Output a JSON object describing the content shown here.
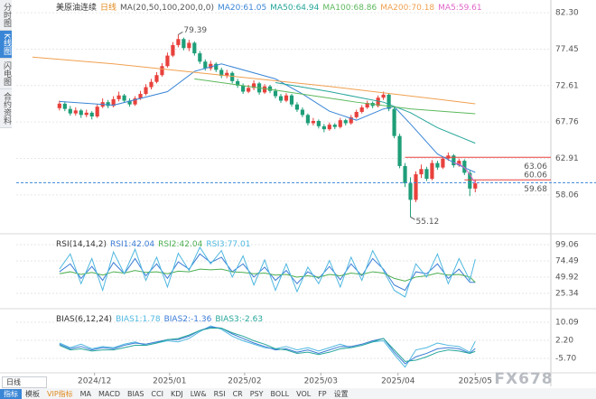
{
  "chart_data": [
    {
      "type": "candlestick",
      "title": "美原油连续",
      "period": "日线",
      "indicator": "MA(20,50,100,200,0,0)",
      "xlim": [
        -8,
        91
      ],
      "ylim": [
        53,
        84
      ],
      "yticks": [
        {
          "value": 82.3,
          "label": "82.30"
        },
        77.45,
        72.61,
        67.76,
        62.91,
        58.06
      ],
      "xticks": [
        {
          "value": 6.5,
          "label": "2024/12"
        },
        {
          "value": 20.4,
          "label": "2025/01"
        },
        {
          "value": 34.3,
          "label": "2025/02"
        },
        {
          "value": 48.4,
          "label": "2025/03"
        },
        {
          "value": 62.7,
          "label": "2025/04"
        },
        {
          "value": 77,
          "label": "2025/05"
        }
      ],
      "grid": true,
      "up_color": "#e8413c",
      "down_color": "#1e9e78",
      "candles": [
        [
          69.6,
          70.6,
          69.3,
          70.2
        ],
        [
          70.2,
          70.5,
          69.2,
          69.5
        ],
        [
          69.5,
          69.9,
          68.6,
          68.9
        ],
        [
          68.9,
          69.7,
          68.6,
          69.3
        ],
        [
          69.3,
          69.5,
          68.3,
          68.7
        ],
        [
          68.7,
          69.4,
          68.4,
          69.0
        ],
        [
          69.0,
          69.2,
          68.1,
          68.5
        ],
        [
          68.5,
          70.1,
          68.3,
          69.8
        ],
        [
          69.8,
          70.9,
          69.6,
          70.4
        ],
        [
          70.4,
          70.7,
          69.6,
          69.9
        ],
        [
          69.9,
          71.2,
          69.7,
          70.8
        ],
        [
          70.8,
          71.8,
          70.5,
          71.3
        ],
        [
          71.3,
          71.5,
          70.3,
          70.6
        ],
        [
          70.6,
          70.9,
          69.8,
          70.1
        ],
        [
          70.1,
          71.2,
          69.9,
          70.9
        ],
        [
          70.9,
          71.9,
          70.7,
          71.5
        ],
        [
          71.5,
          72.8,
          71.3,
          72.4
        ],
        [
          72.4,
          73.5,
          72.1,
          73.1
        ],
        [
          73.1,
          74.4,
          72.9,
          74.0
        ],
        [
          74.0,
          75.6,
          73.8,
          75.2
        ],
        [
          75.2,
          77.0,
          75.0,
          76.6
        ],
        [
          76.6,
          78.4,
          76.4,
          78.0
        ],
        [
          78.0,
          79.39,
          77.7,
          78.8
        ],
        [
          78.8,
          79.0,
          77.3,
          77.6
        ],
        [
          77.6,
          78.7,
          77.2,
          78.3
        ],
        [
          78.3,
          78.5,
          76.6,
          76.9
        ],
        [
          76.9,
          77.2,
          75.5,
          75.8
        ],
        [
          75.8,
          76.1,
          74.6,
          74.9
        ],
        [
          74.9,
          75.9,
          74.6,
          75.5
        ],
        [
          75.5,
          75.7,
          74.4,
          74.7
        ],
        [
          74.7,
          75.0,
          73.6,
          73.9
        ],
        [
          73.9,
          74.7,
          73.6,
          74.3
        ],
        [
          74.3,
          74.5,
          72.9,
          73.2
        ],
        [
          73.2,
          73.5,
          72.3,
          72.6
        ],
        [
          72.6,
          72.9,
          71.5,
          71.8
        ],
        [
          71.8,
          72.7,
          71.6,
          72.3
        ],
        [
          72.3,
          73.3,
          72.0,
          72.9
        ],
        [
          72.9,
          73.1,
          71.4,
          71.7
        ],
        [
          71.7,
          72.8,
          71.5,
          72.5
        ],
        [
          72.5,
          72.7,
          71.6,
          71.9
        ],
        [
          71.9,
          72.2,
          70.9,
          71.2
        ],
        [
          71.2,
          71.5,
          70.3,
          70.6
        ],
        [
          70.6,
          71.6,
          70.4,
          71.3
        ],
        [
          71.3,
          71.5,
          69.8,
          70.1
        ],
        [
          70.1,
          70.4,
          69.1,
          69.4
        ],
        [
          69.4,
          69.7,
          68.4,
          68.7
        ],
        [
          68.7,
          68.9,
          67.3,
          67.6
        ],
        [
          67.6,
          68.3,
          67.3,
          67.9
        ],
        [
          67.9,
          68.1,
          66.9,
          67.2
        ],
        [
          67.2,
          67.5,
          66.4,
          66.8
        ],
        [
          66.8,
          67.7,
          66.6,
          67.4
        ],
        [
          67.4,
          67.6,
          66.8,
          67.1
        ],
        [
          67.1,
          68.3,
          66.9,
          68.0
        ],
        [
          68.0,
          68.2,
          67.3,
          67.6
        ],
        [
          67.6,
          68.7,
          67.4,
          68.4
        ],
        [
          68.4,
          69.4,
          68.2,
          69.1
        ],
        [
          69.1,
          70.0,
          68.9,
          69.7
        ],
        [
          69.7,
          70.6,
          69.5,
          70.3
        ],
        [
          70.3,
          70.5,
          69.6,
          69.9
        ],
        [
          69.9,
          71.3,
          69.7,
          71.0
        ],
        [
          71.0,
          71.8,
          70.7,
          71.4
        ],
        [
          71.4,
          71.6,
          69.2,
          69.5
        ],
        [
          69.5,
          69.8,
          65.6,
          65.9
        ],
        [
          65.9,
          66.2,
          61.6,
          61.9
        ],
        [
          61.9,
          62.3,
          59.1,
          59.6
        ],
        [
          59.6,
          60.4,
          55.12,
          57.4
        ],
        [
          57.4,
          61.2,
          57.1,
          60.8
        ],
        [
          60.8,
          62.1,
          60.3,
          61.5
        ],
        [
          61.5,
          61.8,
          59.9,
          60.2
        ],
        [
          60.2,
          62.7,
          60.0,
          62.3
        ],
        [
          62.3,
          62.6,
          61.4,
          61.7
        ],
        [
          61.7,
          63.2,
          61.5,
          62.9
        ],
        [
          62.9,
          63.7,
          62.6,
          63.3
        ],
        [
          63.3,
          63.5,
          61.7,
          62.0
        ],
        [
          62.0,
          62.9,
          61.8,
          62.6
        ],
        [
          62.6,
          62.8,
          60.7,
          61.0
        ],
        [
          61.0,
          61.3,
          57.9,
          58.9
        ],
        [
          58.9,
          60.1,
          58.4,
          59.6
        ]
      ],
      "series": [
        {
          "name": "MA20:61.05",
          "color": "#3a86d6",
          "x": [
            0,
            10,
            20,
            25,
            30,
            40,
            45,
            50,
            55,
            60,
            62,
            65,
            70,
            74,
            77
          ],
          "values": [
            70.5,
            70.0,
            71.8,
            74.5,
            75.5,
            73.5,
            71.5,
            69.2,
            68.0,
            69.5,
            69.8,
            67.5,
            63.5,
            62.0,
            61.05
          ]
        },
        {
          "name": "MA50:64.94",
          "color": "#26a69a",
          "x": [
            40,
            50,
            60,
            65,
            70,
            77
          ],
          "values": [
            73.0,
            71.8,
            70.4,
            69.0,
            67.0,
            64.94
          ]
        },
        {
          "name": "MA100:68.86",
          "color": "#5cb85c",
          "x": [
            25,
            40,
            55,
            65,
            77
          ],
          "values": [
            73.5,
            72.0,
            70.4,
            69.5,
            68.86
          ]
        },
        {
          "name": "MA200:70.18",
          "color": "#f0a050",
          "x": [
            -5,
            10,
            30,
            50,
            70,
            77
          ],
          "values": [
            76.4,
            75.5,
            74.0,
            72.5,
            70.8,
            70.18
          ]
        },
        {
          "name": "MA5:59.61",
          "color": "#e066c8",
          "x": [
            73,
            74,
            75,
            76,
            77
          ],
          "values": [
            62.3,
            62.2,
            61.7,
            60.8,
            59.61
          ]
        }
      ],
      "annotations": [
        {
          "value": 79.39,
          "x": 22,
          "color": "#e8413c"
        },
        {
          "value": 55.12,
          "x": 65,
          "color": "#1e9e78"
        }
      ],
      "price_lines": [
        {
          "value": 63.06,
          "color": "#e8413c"
        },
        {
          "value": 60.06,
          "color": "#e8413c"
        }
      ],
      "last_price": {
        "value": 59.68,
        "color": "#3a86d6"
      }
    },
    {
      "type": "line",
      "title": "RSI(14,14,2)",
      "xlim": [
        -8,
        91
      ],
      "ylim": [
        4.9,
        111.3
      ],
      "yticks": [
        99.06,
        74.49,
        49.92,
        25.34
      ],
      "grid": true,
      "series": [
        {
          "name": "RSI1:42.04",
          "color": "#3a7bd5",
          "x": [
            0,
            2,
            4,
            6,
            8,
            10,
            12,
            14,
            16,
            18,
            20,
            22,
            24,
            26,
            28,
            30,
            32,
            34,
            36,
            38,
            40,
            42,
            44,
            46,
            48,
            50,
            52,
            54,
            56,
            58,
            60,
            62,
            64,
            66,
            68,
            70,
            72,
            74,
            76,
            77
          ],
          "values": [
            58,
            70,
            48,
            66,
            45,
            72,
            55,
            78,
            52,
            70,
            48,
            73,
            62,
            85,
            72,
            80,
            58,
            70,
            50,
            65,
            45,
            60,
            40,
            58,
            48,
            66,
            46,
            70,
            52,
            78,
            62,
            38,
            30,
            58,
            55,
            70,
            48,
            62,
            42,
            42.04
          ]
        },
        {
          "name": "RSI2:42.04",
          "color": "#4caf50",
          "x": [
            0,
            2,
            4,
            6,
            8,
            10,
            12,
            14,
            16,
            18,
            20,
            22,
            24,
            26,
            28,
            30,
            32,
            34,
            36,
            38,
            40,
            42,
            44,
            46,
            48,
            50,
            52,
            54,
            56,
            58,
            60,
            62,
            64,
            66,
            68,
            70,
            72,
            74,
            76,
            77
          ],
          "values": [
            55,
            58,
            54,
            57,
            53,
            58,
            56,
            60,
            57,
            58,
            55,
            59,
            58,
            62,
            61,
            62,
            58,
            57,
            55,
            56,
            53,
            54,
            50,
            52,
            50,
            54,
            52,
            56,
            54,
            58,
            56,
            48,
            44,
            50,
            52,
            56,
            53,
            54,
            50,
            42.04
          ]
        },
        {
          "name": "RSI3:77.01",
          "color": "#4fb8e0",
          "x": [
            0,
            2,
            4,
            6,
            8,
            10,
            12,
            14,
            16,
            18,
            20,
            22,
            24,
            26,
            28,
            30,
            32,
            34,
            36,
            38,
            40,
            42,
            44,
            46,
            48,
            50,
            52,
            54,
            56,
            58,
            60,
            62,
            64,
            66,
            68,
            70,
            72,
            74,
            76,
            77
          ],
          "values": [
            62,
            85,
            40,
            78,
            30,
            88,
            55,
            92,
            45,
            80,
            35,
            86,
            60,
            95,
            70,
            90,
            50,
            82,
            38,
            76,
            30,
            70,
            28,
            65,
            40,
            75,
            35,
            80,
            45,
            90,
            60,
            30,
            20,
            70,
            50,
            85,
            40,
            78,
            45,
            77.01
          ]
        }
      ]
    },
    {
      "type": "line",
      "title": "BIAS(6,12,24)",
      "xlim": [
        -8,
        91
      ],
      "ylim": [
        -11.6,
        14.8
      ],
      "yticks": [
        10.09,
        {
          "value": 2.2,
          "label": "2.20"
        },
        {
          "value": -5.7,
          "label": "-5.70"
        }
      ],
      "grid": true,
      "series": [
        {
          "name": "BIAS1:1.78",
          "color": "#4fb8e0",
          "x": [
            0,
            2,
            4,
            6,
            8,
            10,
            12,
            14,
            16,
            18,
            20,
            22,
            24,
            26,
            28,
            30,
            32,
            34,
            36,
            38,
            40,
            42,
            44,
            46,
            48,
            50,
            52,
            54,
            56,
            58,
            60,
            62,
            64,
            66,
            68,
            70,
            72,
            74,
            76,
            77
          ],
          "values": [
            1,
            -1,
            0.5,
            -1.5,
            -0.5,
            -1,
            0.5,
            1.5,
            0,
            1,
            2,
            1.5,
            3,
            6,
            8.5,
            7,
            4,
            2,
            0.5,
            -1,
            -1.5,
            -0.5,
            -2,
            -1,
            -2.5,
            -1,
            0.5,
            -1,
            0,
            1.5,
            2,
            -4,
            -9.5,
            -2,
            -1,
            1,
            0,
            -0.5,
            -3,
            1.78
          ]
        },
        {
          "name": "BIAS2:-1.36",
          "color": "#3a7bd5",
          "x": [
            0,
            2,
            4,
            6,
            8,
            10,
            12,
            14,
            16,
            18,
            20,
            22,
            24,
            26,
            28,
            30,
            32,
            34,
            36,
            38,
            40,
            42,
            44,
            46,
            48,
            50,
            52,
            54,
            56,
            58,
            60,
            62,
            64,
            66,
            68,
            70,
            72,
            74,
            76,
            77
          ],
          "values": [
            0.5,
            -1.5,
            -0.5,
            -2,
            -1,
            -1.5,
            0,
            1,
            0.5,
            1.5,
            2.5,
            2.5,
            4,
            6.5,
            8,
            7.5,
            5,
            3,
            1,
            -0.5,
            -2,
            -1.5,
            -3,
            -2,
            -3.5,
            -2,
            -0.5,
            -0.5,
            0.5,
            2,
            3,
            -3,
            -8,
            -5,
            -3.5,
            -1.5,
            -1,
            -1.5,
            -3.5,
            -1.36
          ]
        },
        {
          "name": "BIAS3:-2.63",
          "color": "#26a69a",
          "x": [
            0,
            2,
            4,
            6,
            8,
            10,
            12,
            14,
            16,
            18,
            20,
            22,
            24,
            26,
            28,
            30,
            32,
            34,
            36,
            38,
            40,
            42,
            44,
            46,
            48,
            50,
            52,
            54,
            56,
            58,
            60,
            62,
            64,
            66,
            68,
            70,
            72,
            74,
            76,
            77
          ],
          "values": [
            0,
            -2,
            -1.5,
            -2.5,
            -2,
            -2,
            -1,
            0,
            0,
            1,
            2.5,
            3,
            4.5,
            6.5,
            7.5,
            7.5,
            5.5,
            4,
            2,
            0.5,
            -1.5,
            -2,
            -3.5,
            -3,
            -4,
            -3,
            -1.5,
            -1,
            0,
            1.5,
            3,
            -2,
            -7,
            -6.5,
            -5,
            -3,
            -2,
            -2.5,
            -3.5,
            -2.63
          ]
        }
      ]
    }
  ],
  "sidebar": [
    "分时图",
    "K线图",
    "闪电图",
    "合约资料"
  ],
  "toolbar": {
    "period": "日线",
    "tabs": [
      "指标",
      "模板"
    ],
    "indicators": [
      "VIP指标",
      "MA",
      "MACD",
      "BIAS",
      "CCI",
      "KDJ",
      "LW&",
      "RSI",
      "CR",
      "PSY",
      "BOLL",
      "VOL",
      "FP",
      "设置"
    ]
  },
  "watermark": "FX678"
}
